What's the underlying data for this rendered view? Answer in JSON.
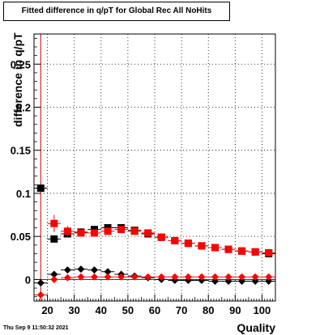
{
  "title": "Fitted difference in q/pT for Global Rec All NoHits",
  "footer_date": "Thu Sep  9 11:50:32 2021",
  "colors": {
    "black": "#000000",
    "red": "#ff0000",
    "highlight_line": "#cc0000"
  },
  "chart_data": {
    "type": "scatter",
    "title": "Fitted difference in q/pT for Global Rec All NoHits",
    "xlabel": "Quality",
    "ylabel": "difference in q/pT",
    "xlim": [
      15,
      105
    ],
    "ylim": [
      -0.025,
      0.285
    ],
    "xticks": [
      20,
      30,
      40,
      50,
      60,
      70,
      80,
      90,
      100
    ],
    "yticks": [
      0,
      0.05,
      0.1,
      0.15,
      0.2,
      0.25
    ],
    "xtick_labels": [
      "20",
      "30",
      "40",
      "50",
      "60",
      "70",
      "80",
      "90",
      "100"
    ],
    "ytick_labels": [
      "0",
      "0.05",
      "0.1",
      "0.15",
      "0.2",
      "0.25"
    ],
    "grid": true,
    "vertical_marker_x": 17.5,
    "series": [
      {
        "marker": "square",
        "color": "#000000",
        "x": [
          17.5,
          22.5,
          27.5,
          32.5,
          37.5,
          42.5,
          47.5,
          52.5,
          57.5,
          62.5,
          67.5,
          72.5,
          77.5,
          82.5,
          87.5,
          92.5,
          97.5,
          102.5
        ],
        "y": [
          0.106,
          0.047,
          0.053,
          0.055,
          0.058,
          0.06,
          0.06,
          0.057,
          0.053,
          0.049,
          0.045,
          0.042,
          0.039,
          0.037,
          0.035,
          0.033,
          0.032,
          0.03
        ],
        "yerr": [
          0.003,
          0.003,
          0.003,
          0.002,
          0.002,
          0.002,
          0.002,
          0.002,
          0.002,
          0.002,
          0.002,
          0.002,
          0.002,
          0.002,
          0.002,
          0.002,
          0.002,
          0.002
        ]
      },
      {
        "marker": "square",
        "color": "#ff0000",
        "x": [
          22.5,
          27.5,
          32.5,
          37.5,
          42.5,
          47.5,
          52.5,
          57.5,
          62.5,
          67.5,
          72.5,
          77.5,
          82.5,
          87.5,
          92.5,
          97.5,
          102.5
        ],
        "y": [
          0.065,
          0.056,
          0.054,
          0.054,
          0.056,
          0.058,
          0.056,
          0.054,
          0.049,
          0.045,
          0.042,
          0.039,
          0.037,
          0.035,
          0.033,
          0.032,
          0.031
        ],
        "yerr": [
          0.01,
          0.006,
          0.004,
          0.003,
          0.003,
          0.003,
          0.003,
          0.003,
          0.003,
          0.003,
          0.003,
          0.003,
          0.003,
          0.003,
          0.003,
          0.003,
          0.003
        ]
      },
      {
        "marker": "diamond",
        "color": "#000000",
        "x": [
          17.5,
          22.5,
          27.5,
          32.5,
          37.5,
          42.5,
          47.5,
          52.5,
          57.5,
          62.5,
          67.5,
          72.5,
          77.5,
          82.5,
          87.5,
          92.5,
          97.5,
          102.5
        ],
        "y": [
          -0.004,
          0.006,
          0.011,
          0.012,
          0.011,
          0.009,
          0.006,
          0.004,
          0.002,
          0.0,
          -0.001,
          -0.001,
          -0.001,
          -0.002,
          -0.002,
          -0.002,
          -0.002,
          -0.002
        ],
        "yerr": [
          0.002,
          0.001,
          0.001,
          0.001,
          0.001,
          0.001,
          0.001,
          0.001,
          0.001,
          0.001,
          0.001,
          0.001,
          0.001,
          0.001,
          0.001,
          0.001,
          0.001,
          0.001
        ]
      },
      {
        "marker": "diamond",
        "color": "#ff0000",
        "x": [
          17.5,
          22.5,
          27.5,
          32.5,
          37.5,
          42.5,
          47.5,
          52.5,
          57.5,
          62.5,
          67.5,
          72.5,
          77.5,
          82.5,
          87.5,
          92.5,
          97.5,
          102.5
        ],
        "y": [
          -0.018,
          0.0,
          0.002,
          0.003,
          0.003,
          0.003,
          0.003,
          0.003,
          0.003,
          0.003,
          0.003,
          0.003,
          0.003,
          0.003,
          0.003,
          0.003,
          0.003,
          0.003
        ],
        "yerr": [
          0.002,
          0.004,
          0.002,
          0.001,
          0.001,
          0.001,
          0.001,
          0.001,
          0.001,
          0.001,
          0.001,
          0.001,
          0.001,
          0.001,
          0.001,
          0.001,
          0.001,
          0.001
        ]
      }
    ]
  }
}
